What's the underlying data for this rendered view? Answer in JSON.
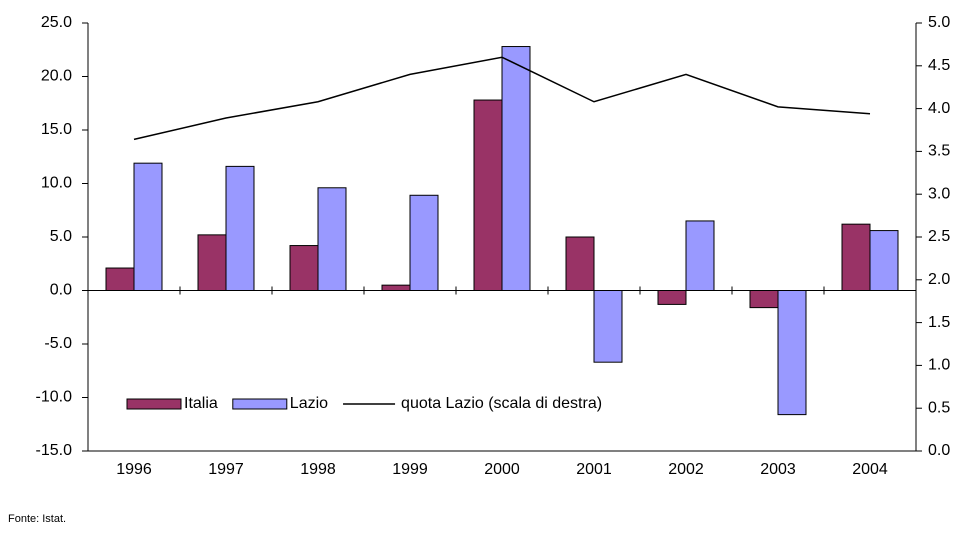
{
  "chart_data": {
    "type": "bar",
    "categories": [
      "1996",
      "1997",
      "1998",
      "1999",
      "2000",
      "2001",
      "2002",
      "2003",
      "2004"
    ],
    "series": [
      {
        "name": "Italia",
        "type": "bar",
        "color": "#993366",
        "values": [
          2.1,
          5.2,
          4.2,
          0.5,
          17.8,
          5.0,
          -1.3,
          -1.6,
          6.2
        ]
      },
      {
        "name": "Lazio",
        "type": "bar",
        "color": "#9999ff",
        "values": [
          11.9,
          11.6,
          9.6,
          8.9,
          22.8,
          -6.7,
          6.5,
          -11.6,
          5.6
        ]
      },
      {
        "name": "quota Lazio (scala di destra)",
        "type": "line",
        "axis": "y2",
        "color": "#000000",
        "values": [
          3.64,
          3.89,
          4.08,
          4.4,
          4.6,
          4.08,
          4.4,
          4.02,
          3.94
        ]
      }
    ],
    "ylim": [
      -15,
      25
    ],
    "yticks": [
      {
        "value": -15,
        "label": "-15.0"
      },
      {
        "value": -10,
        "label": "-10.0"
      },
      {
        "value": -5,
        "label": "-5.0"
      },
      {
        "value": 0,
        "label": "0.0"
      },
      {
        "value": 5,
        "label": "5.0"
      },
      {
        "value": 10,
        "label": "10.0"
      },
      {
        "value": 15,
        "label": "15.0"
      },
      {
        "value": 20,
        "label": "20.0"
      },
      {
        "value": 25,
        "label": "25.0"
      }
    ],
    "y2lim": [
      0,
      5
    ],
    "y2ticks": [
      {
        "value": 0,
        "label": "0.0"
      },
      0.5,
      {
        "value": 1,
        "label": "1.0"
      },
      1.5,
      {
        "value": 2,
        "label": "2.0"
      },
      2.5,
      {
        "value": 3,
        "label": "3.0"
      },
      3.5,
      {
        "value": 4,
        "label": "4.0"
      },
      4.5,
      {
        "value": 5,
        "label": "5.0"
      }
    ],
    "legend": "lower-left",
    "source": "Fonte: Istat."
  }
}
